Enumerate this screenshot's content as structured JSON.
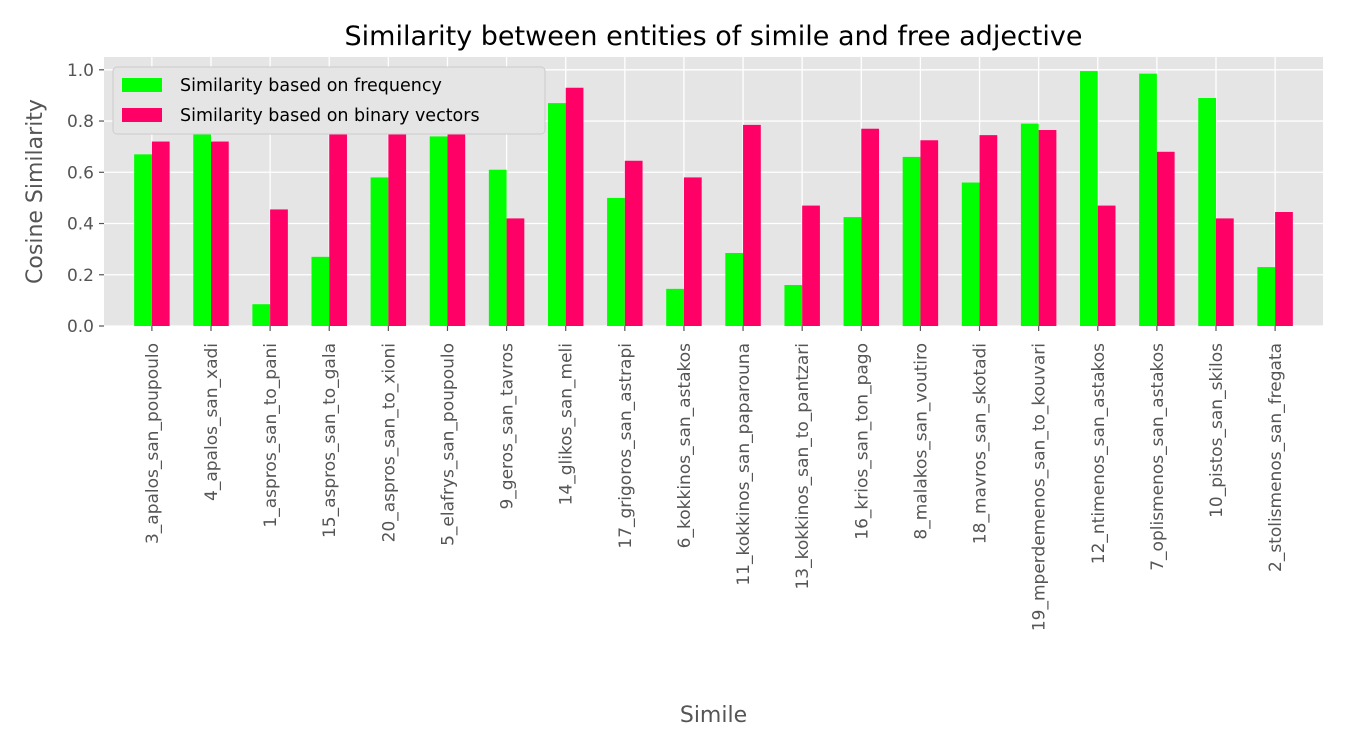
{
  "chart_data": {
    "type": "bar",
    "title": "Similarity between entities of simile and free adjective",
    "xlabel": "Simile",
    "ylabel": "Cosine Similarity",
    "ylim": [
      0,
      1.05
    ],
    "yticks": [
      "0.0",
      "0.2",
      "0.4",
      "0.6",
      "0.8",
      "1.0"
    ],
    "grid": true,
    "legend_position": "top-left",
    "categories": [
      "3_apalos_san_poupoulo",
      "4_apalos_san_xadi",
      "1_aspros_san_to_pani",
      "15_aspros_san_to_gala",
      "20_aspros_san_to_xioni",
      "5_elafrys_san_poupoulo",
      "9_geros_san_tavros",
      "14_glikos_san_meli",
      "17_grigoros_san_astrapi",
      "6_kokkinos_san_astakos",
      "11_kokkinos_san_paparouna",
      "13_kokkinos_san_to_pantzari",
      "16_krios_san_ton_pago",
      "8_malakos_san_voutiro",
      "18_mavros_san_skotadi",
      "19_mperdemenos_san_to_kouvari",
      "12_ntimenos_san_astakos",
      "7_oplismenos_san_astakos",
      "10_pistos_san_skilos",
      "2_stolismenos_san_fregata"
    ],
    "series": [
      {
        "name": "Similarity based on frequency",
        "color": "#00ff00",
        "values": [
          0.67,
          0.8,
          0.085,
          0.27,
          0.58,
          0.74,
          0.61,
          0.87,
          0.5,
          0.145,
          0.285,
          0.16,
          0.425,
          0.66,
          0.56,
          0.79,
          0.995,
          0.985,
          0.89,
          0.23
        ]
      },
      {
        "name": "Similarity based on binary vectors",
        "color": "#ff0066",
        "values": [
          0.72,
          0.72,
          0.455,
          0.855,
          0.795,
          0.755,
          0.42,
          0.93,
          0.645,
          0.58,
          0.785,
          0.47,
          0.77,
          0.725,
          0.745,
          0.765,
          0.47,
          0.68,
          0.42,
          0.445
        ]
      }
    ]
  }
}
